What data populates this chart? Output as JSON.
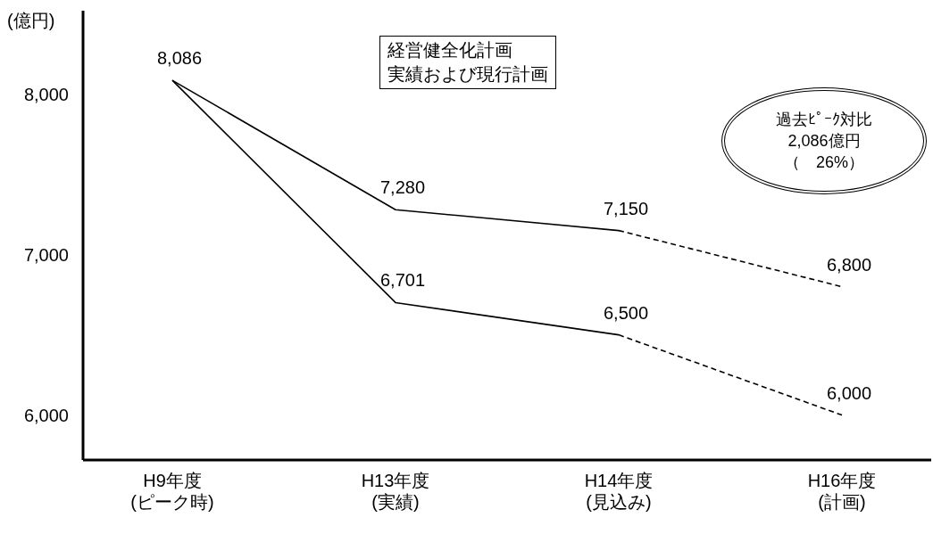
{
  "chart_data": {
    "type": "line",
    "ylabel": "(億円)",
    "categories": [
      "H9年度\n(ピーク時)",
      "H13年度\n(実績)",
      "H14年度\n(見込み)",
      "H16年度\n(計画)"
    ],
    "ylim": [
      5720,
      8520
    ],
    "yticks": [
      {
        "value": 6000,
        "label": "6,000"
      },
      {
        "value": 7000,
        "label": "7,000"
      },
      {
        "value": 8000,
        "label": "8,000"
      }
    ],
    "grid": false,
    "marker": "none",
    "series": [
      {
        "color": "#000000",
        "line_style": "solid",
        "values": [
          8086,
          7280,
          7150,
          null
        ],
        "value_labels": [
          "8,086",
          "7,280",
          "7,150",
          null
        ]
      },
      {
        "color": "#000000",
        "line_style": "dashed",
        "values": [
          null,
          null,
          7150,
          6800
        ],
        "value_labels": [
          null,
          null,
          null,
          "6,800"
        ]
      },
      {
        "color": "#000000",
        "line_style": "solid",
        "values": [
          8086,
          6701,
          6500,
          null
        ],
        "value_labels": [
          null,
          "6,701",
          "6,500",
          null
        ]
      },
      {
        "color": "#000000",
        "line_style": "dashed",
        "values": [
          null,
          null,
          6500,
          6000
        ],
        "value_labels": [
          null,
          null,
          null,
          "6,000"
        ]
      }
    ],
    "annotations": [
      "経営健全化計画",
      "実績および現行計画",
      "過去ﾋﾟｰｸ対比",
      "2,086億円",
      "（　26%）"
    ]
  }
}
